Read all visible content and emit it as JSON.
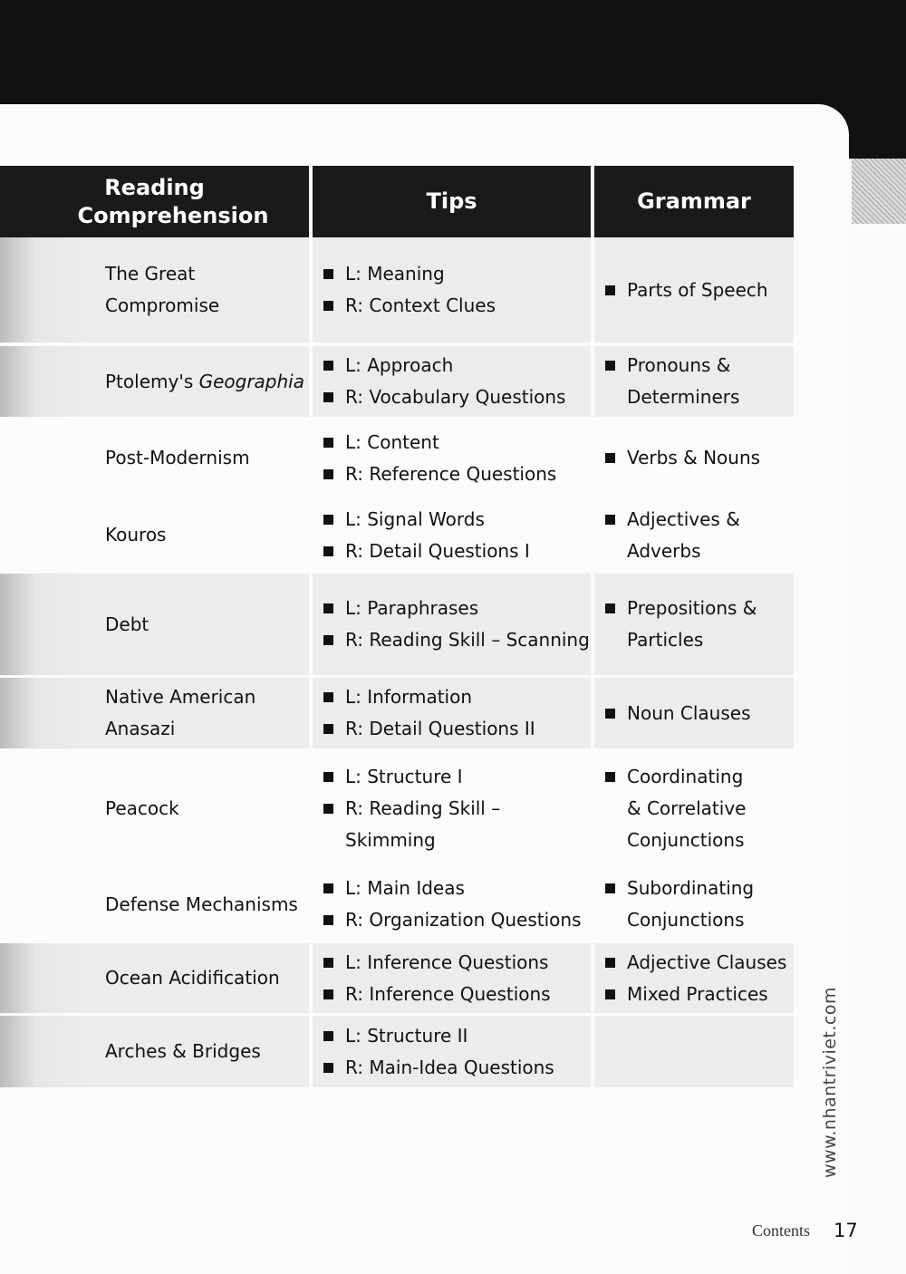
{
  "table": {
    "headers": [
      "Reading Comprehension",
      "Tips",
      "Grammar"
    ],
    "rows": [
      {
        "reading": [
          "The Great",
          "Compromise"
        ],
        "tips": [
          "L: Meaning",
          "R: Context Clues"
        ],
        "grammar": [
          [
            "Parts of Speech"
          ]
        ]
      },
      {
        "reading": [
          "Ptolemy's ",
          "Geographia"
        ],
        "tips": [
          "L: Approach",
          "R: Vocabulary Questions"
        ],
        "grammar": [
          [
            "Pronouns &",
            "Determiners"
          ]
        ]
      },
      {
        "reading": [
          "Post-Modernism"
        ],
        "tips": [
          "L: Content",
          "R: Reference Questions"
        ],
        "grammar": [
          [
            "Verbs & Nouns"
          ]
        ]
      },
      {
        "reading": [
          "Kouros"
        ],
        "tips": [
          "L: Signal Words",
          "R: Detail Questions I"
        ],
        "grammar": [
          [
            "Adjectives &",
            "Adverbs"
          ]
        ]
      },
      {
        "reading": [
          "Debt"
        ],
        "tips": [
          "L: Paraphrases",
          "R: Reading Skill – Scanning"
        ],
        "grammar": [
          [
            "Prepositions &",
            "Particles"
          ]
        ]
      },
      {
        "reading": [
          "Native American",
          "Anasazi"
        ],
        "tips": [
          "L: Information",
          "R: Detail Questions II"
        ],
        "grammar": [
          [
            "Noun Clauses"
          ]
        ]
      },
      {
        "reading": [
          "Peacock"
        ],
        "tips": [
          "L: Structure I",
          "R: Reading Skill – Skimming"
        ],
        "grammar": [
          [
            "Coordinating",
            "& Correlative",
            "Conjunctions"
          ]
        ]
      },
      {
        "reading": [
          "Defense Mechanisms"
        ],
        "tips": [
          "L: Main Ideas",
          "R: Organization Questions"
        ],
        "grammar": [
          [
            "Subordinating",
            "Conjunctions"
          ]
        ]
      },
      {
        "reading": [
          "Ocean Acidification"
        ],
        "tips": [
          "L: Inference Questions",
          "R: Inference Questions"
        ],
        "grammar": [
          [
            "Adjective Clauses"
          ],
          [
            "Mixed Practices"
          ]
        ]
      },
      {
        "reading": [
          "Arches & Bridges"
        ],
        "tips": [
          "L: Structure II",
          "R: Main-Idea Questions"
        ],
        "grammar": []
      }
    ]
  },
  "watermark": "www.nhantriviet.com",
  "footer": {
    "section": "Contents",
    "page_number": "17"
  }
}
